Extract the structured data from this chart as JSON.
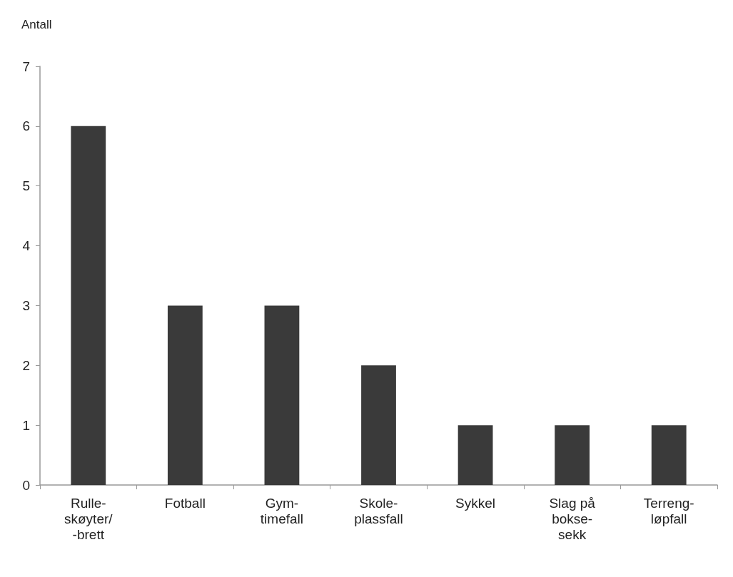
{
  "chart_data": {
    "type": "bar",
    "ylabel": "Antall",
    "categories": [
      "Rulle-\nskøyter/\n-brett",
      "Fotball",
      "Gym-\ntimefall",
      "Skole-\nplassfall",
      "Sykkel",
      "Slag på\nbokse-\nsekk",
      "Terreng-\nløpfall"
    ],
    "values": [
      6,
      3,
      3,
      2,
      1,
      1,
      1
    ],
    "color": "#3a3a3a",
    "ylim": [
      0,
      7
    ],
    "yticks": [
      0,
      1,
      2,
      3,
      4,
      5,
      6,
      7
    ],
    "grid": false
  }
}
